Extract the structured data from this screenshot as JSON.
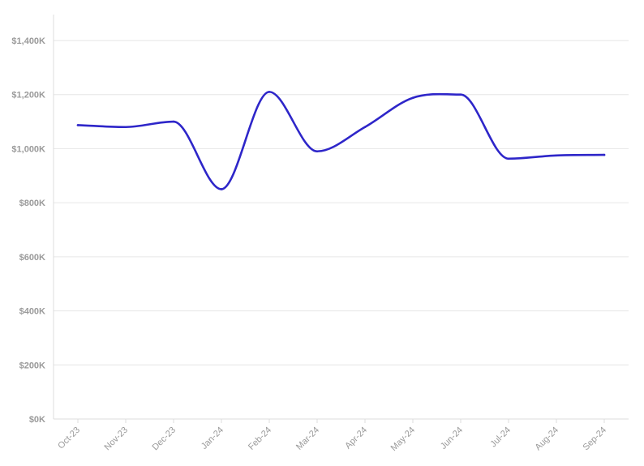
{
  "chart_data": {
    "type": "line",
    "title": "",
    "xlabel": "",
    "ylabel": "",
    "categories": [
      "Oct-23",
      "Nov-23",
      "Dec-23",
      "Jan-24",
      "Feb-24",
      "Mar-24",
      "Apr-24",
      "May-24",
      "Jun-24",
      "Jul-24",
      "Aug-24",
      "Sep-24"
    ],
    "series": [
      {
        "values": [
          1087000,
          1080000,
          1100000,
          850000,
          1210000,
          990000,
          1080000,
          1188000,
          1200000,
          963000,
          975000,
          977000
        ],
        "color": "#2e26c9"
      }
    ],
    "ylim": [
      0,
      1500000
    ],
    "yticks": [
      0,
      200000,
      400000,
      600000,
      800000,
      1000000,
      1200000,
      1400000
    ],
    "ytick_labels": [
      "$0K",
      "$200K",
      "$400K",
      "$600K",
      "$800K",
      "$1,000K",
      "$1,200K",
      "$1,400K"
    ],
    "grid": true,
    "legend": "none"
  }
}
